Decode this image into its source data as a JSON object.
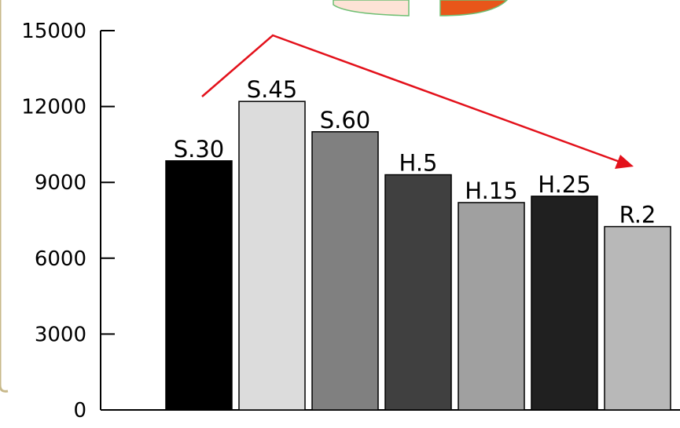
{
  "chart_data": {
    "type": "bar",
    "categories": [
      "S.30",
      "S.45",
      "S.60",
      "H.5",
      "H.15",
      "H.25",
      "R.2"
    ],
    "values": [
      9850,
      12200,
      11000,
      9300,
      8200,
      8450,
      7250
    ],
    "yticks": [
      "0",
      "3000",
      "6000",
      "9000",
      "12000",
      "15000"
    ],
    "ylim": [
      0,
      15000
    ],
    "title": "",
    "xlabel": "",
    "ylabel": "",
    "grid": false,
    "bar_colors": [
      "#000000",
      "#dcdcdc",
      "#808080",
      "#404040",
      "#a0a0a0",
      "#202020",
      "#b8b8b8"
    ],
    "annotation_arrow_color": "#e3111b"
  }
}
